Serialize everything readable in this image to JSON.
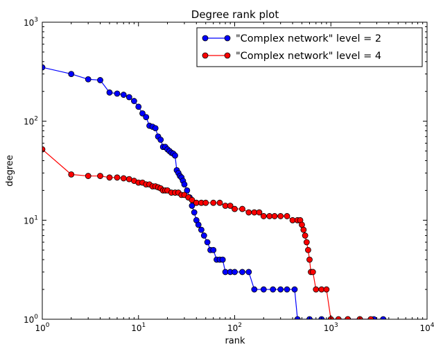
{
  "chart_data": {
    "type": "line",
    "title": "Degree rank plot",
    "xlabel": "rank",
    "ylabel": "degree",
    "xscale": "log",
    "yscale": "log",
    "xlim": [
      1,
      10000
    ],
    "ylim": [
      1,
      1000
    ],
    "x_ticks": [
      1,
      10,
      100,
      1000,
      10000
    ],
    "y_ticks": [
      1,
      10,
      100,
      1000
    ],
    "x_tick_labels": [
      [
        "10",
        "0"
      ],
      [
        "10",
        "1"
      ],
      [
        "10",
        "2"
      ],
      [
        "10",
        "3"
      ],
      [
        "10",
        "4"
      ]
    ],
    "y_tick_labels": [
      [
        "10",
        "0"
      ],
      [
        "10",
        "1"
      ],
      [
        "10",
        "2"
      ],
      [
        "10",
        "3"
      ]
    ],
    "grid": false,
    "legend_position": "top-right",
    "series": [
      {
        "name": "\"Complex network\" level = 2",
        "color": "#0000ff",
        "x": [
          1,
          2,
          3,
          4,
          5,
          6,
          7,
          8,
          9,
          10,
          11,
          12,
          13,
          14,
          15,
          16,
          17,
          18,
          19,
          20,
          21,
          22,
          23,
          24,
          25,
          26,
          27,
          28,
          29,
          30,
          32,
          34,
          36,
          38,
          40,
          42,
          45,
          48,
          52,
          56,
          60,
          65,
          70,
          75,
          80,
          90,
          100,
          120,
          140,
          160,
          200,
          250,
          300,
          350,
          420,
          450,
          600,
          800,
          1000,
          1500,
          2000,
          2800,
          3500
        ],
        "values": [
          350,
          300,
          265,
          260,
          195,
          190,
          185,
          175,
          160,
          140,
          120,
          110,
          90,
          88,
          85,
          70,
          65,
          55,
          55,
          52,
          50,
          48,
          47,
          45,
          32,
          30,
          28,
          27,
          25,
          23,
          20,
          17,
          14,
          12,
          10,
          9,
          8,
          7,
          6,
          5,
          5,
          4,
          4,
          4,
          3,
          3,
          3,
          3,
          3,
          2,
          2,
          2,
          2,
          2,
          2,
          1,
          1,
          1,
          1,
          1,
          1,
          1,
          1
        ]
      },
      {
        "name": "\"Complex network\" level = 4",
        "color": "#ff0000",
        "x": [
          1,
          2,
          3,
          4,
          5,
          6,
          7,
          8,
          9,
          10,
          11,
          12,
          13,
          14,
          15,
          16,
          17,
          18,
          19,
          20,
          22,
          24,
          26,
          28,
          30,
          33,
          36,
          40,
          45,
          50,
          60,
          70,
          80,
          90,
          100,
          120,
          140,
          160,
          180,
          200,
          230,
          260,
          300,
          350,
          400,
          450,
          480,
          500,
          520,
          540,
          560,
          580,
          600,
          620,
          650,
          700,
          800,
          900,
          1000,
          1200,
          1500,
          2000,
          2600
        ],
        "values": [
          52,
          29,
          28,
          28,
          27,
          27,
          26.5,
          26,
          25,
          24,
          24,
          23,
          23,
          22,
          22,
          21.5,
          21,
          20,
          20,
          20,
          19,
          19,
          19,
          18,
          18,
          17,
          16,
          15,
          15,
          15,
          15,
          15,
          14,
          14,
          13,
          13,
          12,
          12,
          12,
          11,
          11,
          11,
          11,
          11,
          10,
          10,
          10,
          9,
          8,
          7,
          6,
          5,
          4,
          3,
          3,
          2,
          2,
          2,
          1,
          1,
          1,
          1,
          1
        ]
      }
    ]
  }
}
